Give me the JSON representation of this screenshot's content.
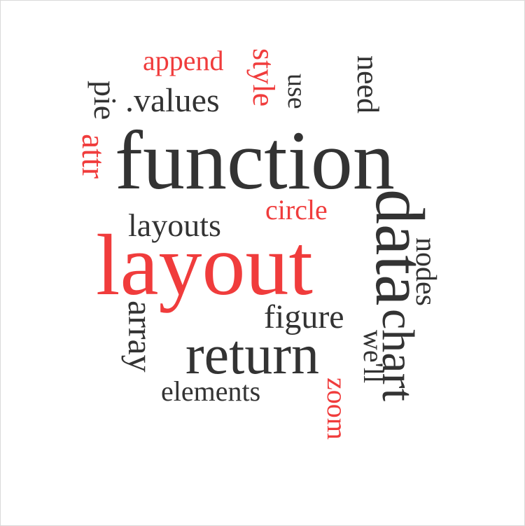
{
  "colors": {
    "dark": "#333333",
    "accent": "#f03c3c",
    "background": "#ffffff"
  },
  "words": {
    "function": "function",
    "layout": "layout",
    "data": "data",
    "chart": "chart",
    "return": "return",
    "layouts": "layouts",
    "circle": "circle",
    "figure": "figure",
    "array": "array",
    "elements": "elements",
    "append": "append",
    "style": "style",
    "values": ".values",
    "pie": "pie",
    "attr": "attr",
    "use": "use",
    "need": "need",
    "nodes": "nodes",
    "well": "we'll",
    "zoom": "zoom"
  }
}
